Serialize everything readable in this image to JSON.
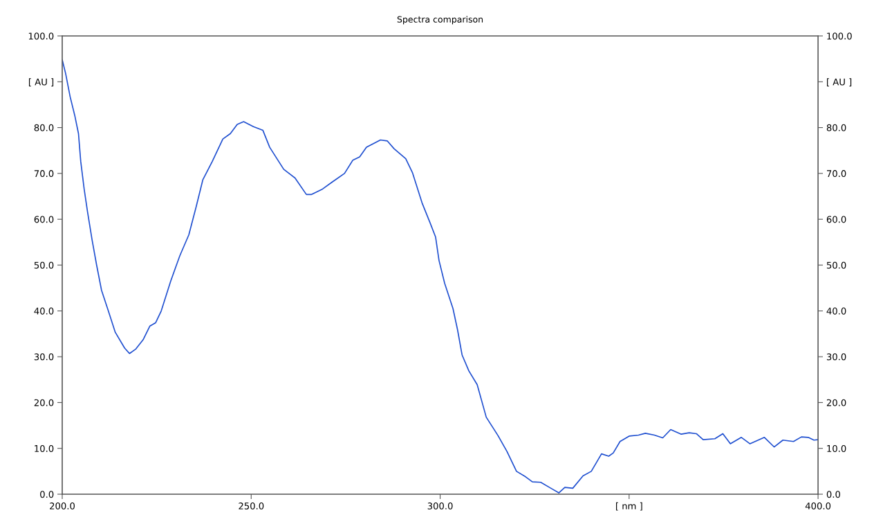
{
  "chart_data": {
    "type": "line",
    "title": "Spectra comparison",
    "x": [
      200,
      200.9,
      202.1,
      203.3,
      204.3,
      204.9,
      205.8,
      206.7,
      207.9,
      209.1,
      210.4,
      212.2,
      214.0,
      216.5,
      217.8,
      219.5,
      221.4,
      223.2,
      224.7,
      226.2,
      228.7,
      231.1,
      233.5,
      235.4,
      237.2,
      239.7,
      242.5,
      244.5,
      246.3,
      248.0,
      250.6,
      253.1,
      254.9,
      258.6,
      261.6,
      264.6,
      265.9,
      268.9,
      271.4,
      274.7,
      276.9,
      278.7,
      280.5,
      284.2,
      286.0,
      287.8,
      290.9,
      292.7,
      295.2,
      297.3,
      298.8,
      299.7,
      301.2,
      303.4,
      304.6,
      305.8,
      307.6,
      309.8,
      312.2,
      315.3,
      317.7,
      320.2,
      322.6,
      324.4,
      326.6,
      329.3,
      331.4,
      333.0,
      335.1,
      337.8,
      340.0,
      342.7,
      344.6,
      345.8,
      347.6,
      350.1,
      352.5,
      354.3,
      356.7,
      358.9,
      361.0,
      363.8,
      365.9,
      367.8,
      369.6,
      372.7,
      374.8,
      376.8,
      379.7,
      382.0,
      385.8,
      388.4,
      390.7,
      393.5,
      395.6,
      397.4,
      398.9,
      400
    ],
    "series": [
      {
        "color": "#1f4fd0",
        "values": [
          94.8,
          91.8,
          86.7,
          82.7,
          78.7,
          72.6,
          66.6,
          61.6,
          55.5,
          50.0,
          44.5,
          40.0,
          35.4,
          31.9,
          30.7,
          31.7,
          33.7,
          36.7,
          37.4,
          40.0,
          46.5,
          52.0,
          56.6,
          62.6,
          68.6,
          72.6,
          77.5,
          78.7,
          80.7,
          81.3,
          80.2,
          79.4,
          75.7,
          70.9,
          69.0,
          65.4,
          65.4,
          66.6,
          68.1,
          70.0,
          72.9,
          73.6,
          75.7,
          77.3,
          77.1,
          75.4,
          73.2,
          70.1,
          63.6,
          59.3,
          56.1,
          51.0,
          46.0,
          40.5,
          35.9,
          30.4,
          26.9,
          23.9,
          16.8,
          12.8,
          9.3,
          5.0,
          3.8,
          2.7,
          2.6,
          1.3,
          0.3,
          1.5,
          1.3,
          4.0,
          5.0,
          8.8,
          8.3,
          9.0,
          11.5,
          12.7,
          12.9,
          13.3,
          12.9,
          12.3,
          14.1,
          13.1,
          13.4,
          13.2,
          11.9,
          12.1,
          13.2,
          11.0,
          12.4,
          11.0,
          12.4,
          10.3,
          11.8,
          11.5,
          12.5,
          12.4,
          11.8,
          11.9
        ]
      }
    ],
    "xlim": [
      200,
      400
    ],
    "xticks": [
      {
        "value": 200,
        "label": "200.0"
      },
      {
        "value": 250,
        "label": "250.0"
      },
      {
        "value": 300,
        "label": "300.0"
      },
      {
        "value": 350,
        "label": "[ nm ]"
      },
      {
        "value": 400,
        "label": "400.0"
      }
    ],
    "ylim": [
      0,
      100
    ],
    "yticks": [
      {
        "value": 0,
        "label": "0.0"
      },
      {
        "value": 10,
        "label": "10.0"
      },
      {
        "value": 20,
        "label": "20.0"
      },
      {
        "value": 30,
        "label": "30.0"
      },
      {
        "value": 40,
        "label": "40.0"
      },
      {
        "value": 50,
        "label": "50.0"
      },
      {
        "value": 60,
        "label": "60.0"
      },
      {
        "value": 70,
        "label": "70.0"
      },
      {
        "value": 80,
        "label": "80.0"
      },
      {
        "value": 90,
        "label": "[ AU ]"
      },
      {
        "value": 100,
        "label": "100.0"
      }
    ],
    "y2lim": [
      0,
      100
    ],
    "y2ticks": [
      {
        "value": 0,
        "label": "0.0"
      },
      {
        "value": 10,
        "label": "10.0"
      },
      {
        "value": 20,
        "label": "20.0"
      },
      {
        "value": 30,
        "label": "30.0"
      },
      {
        "value": 40,
        "label": "40.0"
      },
      {
        "value": 50,
        "label": "50.0"
      },
      {
        "value": 60,
        "label": "60.0"
      },
      {
        "value": 70,
        "label": "70.0"
      },
      {
        "value": 80,
        "label": "80.0"
      },
      {
        "value": 90,
        "label": "[ AU ]"
      },
      {
        "value": 100,
        "label": "100.0"
      }
    ],
    "grid": false,
    "marker": "none",
    "line_style": "solid"
  }
}
